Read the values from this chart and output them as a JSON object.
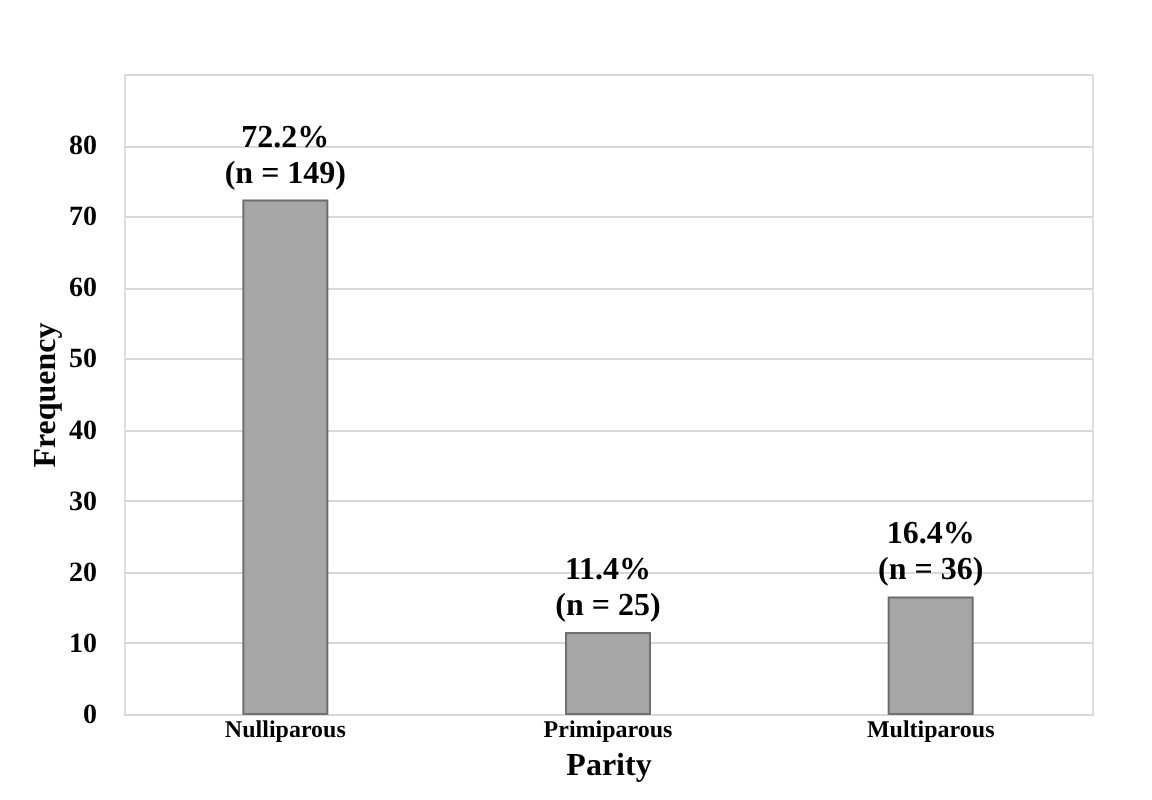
{
  "chart_data": {
    "type": "bar",
    "xlabel": "Parity",
    "ylabel": "Frequency",
    "categories": [
      "Nulliparous",
      "Primiparous",
      "Multiparous"
    ],
    "values": [
      72.2,
      11.4,
      16.4
    ],
    "value_labels": [
      "72.2%\n(n = 149)",
      "11.4%\n(n = 25)",
      "16.4%\n(n = 36)"
    ],
    "color": "#a6a6a6",
    "ylim": [
      0,
      90
    ],
    "yticks": [
      0,
      10,
      20,
      30,
      40,
      50,
      60,
      70,
      80,
      {
        "value": 90,
        "label": null
      }
    ],
    "grid": "y"
  }
}
